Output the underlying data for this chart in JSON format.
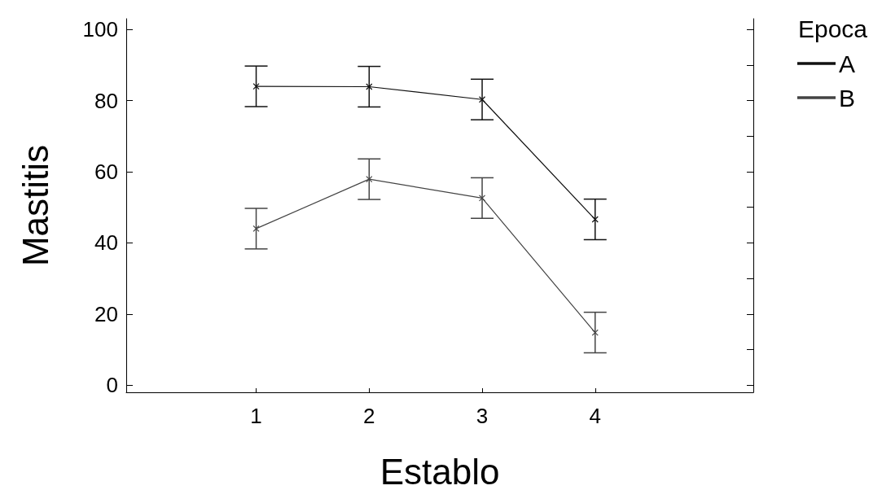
{
  "chart_data": {
    "type": "line",
    "xlabel": "Establo",
    "ylabel": "Mastitis",
    "legend_title": "Epoca",
    "x": [
      1,
      2,
      3,
      4
    ],
    "xlim": [
      -0.15,
      5.4
    ],
    "xticks": [
      1,
      2,
      3,
      4
    ],
    "ylim": [
      -2,
      103
    ],
    "yticks": [
      0,
      20,
      40,
      60,
      80,
      100
    ],
    "series": [
      {
        "name": "A",
        "color": "#111111",
        "values": [
          84.0,
          83.9,
          80.3,
          46.6
        ],
        "errors": [
          5.7,
          5.7,
          5.7,
          5.7
        ]
      },
      {
        "name": "B",
        "color": "#444444",
        "values": [
          44.0,
          57.9,
          52.6,
          14.8
        ],
        "errors": [
          5.7,
          5.7,
          5.7,
          5.7
        ]
      }
    ],
    "marker": "cross",
    "line_style": "solid",
    "grid": false,
    "legend": "top right"
  }
}
